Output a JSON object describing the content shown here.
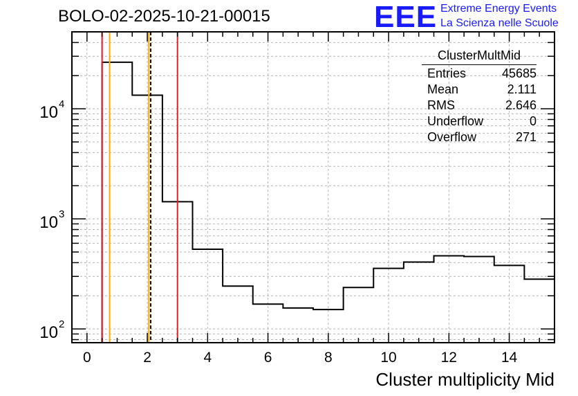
{
  "header": {
    "title": "BOLO-02-2025-10-21-00015",
    "logo_text": "EEE",
    "logo_line1": "Extreme Energy Events",
    "logo_line2": "La Scienza nelle Scuole"
  },
  "stats": {
    "name": "ClusterMultMid",
    "rows": [
      {
        "label": "Entries",
        "value": "45685"
      },
      {
        "label": "Mean",
        "value": "2.111"
      },
      {
        "label": "RMS",
        "value": "2.646"
      },
      {
        "label": "Underflow",
        "value": "0"
      },
      {
        "label": "Overflow",
        "value": "271"
      }
    ]
  },
  "chart_data": {
    "type": "histogram",
    "title": "BOLO-02-2025-10-21-00015",
    "xlabel": "Cluster multiplicity Mid",
    "ylabel": "",
    "xlim": [
      -0.5,
      15.5
    ],
    "ylim": [
      75,
      50000
    ],
    "yscale": "log",
    "grid": true,
    "bin_edges": [
      0.5,
      1.5,
      2.5,
      3.5,
      4.5,
      5.5,
      6.5,
      7.5,
      8.5,
      9.5,
      10.5,
      11.5,
      12.5,
      13.5,
      14.5,
      15.5
    ],
    "values": [
      26500,
      13300,
      1430,
      530,
      245,
      168,
      155,
      150,
      238,
      355,
      405,
      462,
      455,
      378,
      283
    ],
    "x_ticks": [
      0,
      2,
      4,
      6,
      8,
      10,
      12,
      14
    ],
    "y_ticks": [
      {
        "value": 100,
        "base": "10",
        "exp": "2"
      },
      {
        "value": 1000,
        "base": "10",
        "exp": "3"
      },
      {
        "value": 10000,
        "base": "10",
        "exp": "4"
      }
    ],
    "vertical_lines": [
      {
        "x": 0.5,
        "color": "#e41a1c",
        "dashed": false
      },
      {
        "x": 0.75,
        "color": "#ffaa00",
        "dashed": false
      },
      {
        "x": 2.05,
        "color": "#ffaa00",
        "dashed": false
      },
      {
        "x": 2.111,
        "color": "#000000",
        "dashed": true
      },
      {
        "x": 3.0,
        "color": "#e41a1c",
        "dashed": false
      }
    ]
  }
}
